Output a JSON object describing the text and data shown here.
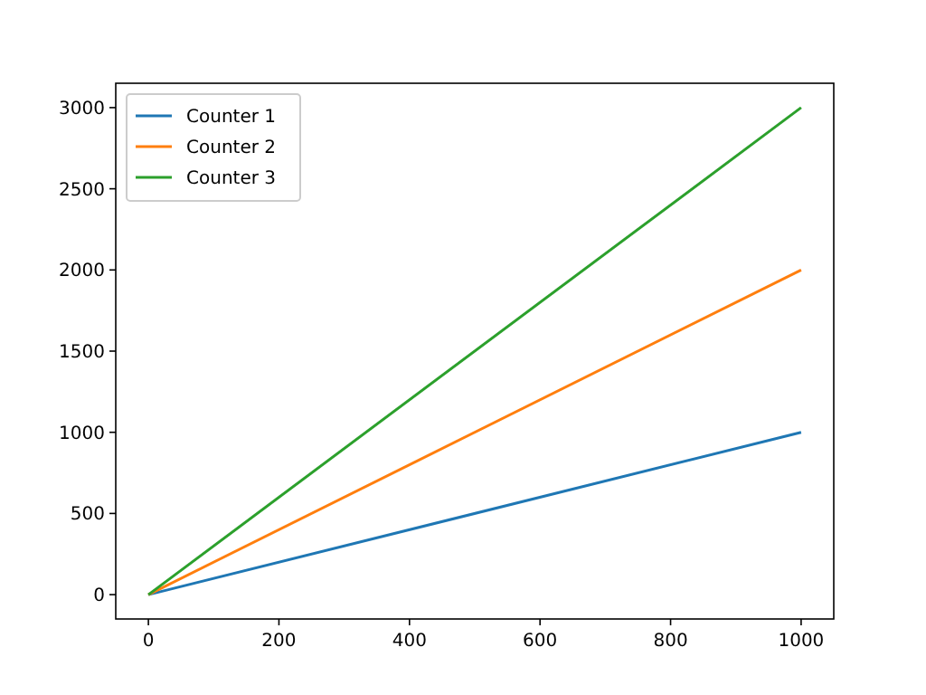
{
  "chart_data": {
    "type": "line",
    "x": [
      0,
      1000
    ],
    "series": [
      {
        "name": "Counter 1",
        "color": "#1f77b4",
        "values": [
          0,
          1000
        ]
      },
      {
        "name": "Counter 2",
        "color": "#ff7f0e",
        "values": [
          0,
          2000
        ]
      },
      {
        "name": "Counter 3",
        "color": "#2ca02c",
        "values": [
          0,
          3000
        ]
      }
    ],
    "xlim": [
      -50,
      1050
    ],
    "ylim": [
      -150,
      3150
    ],
    "xticks": [
      0,
      200,
      400,
      600,
      800,
      1000
    ],
    "yticks": [
      0,
      500,
      1000,
      1500,
      2000,
      2500,
      3000
    ],
    "legend": "top left",
    "grid": false,
    "marker": "none",
    "line_style": "solid"
  }
}
